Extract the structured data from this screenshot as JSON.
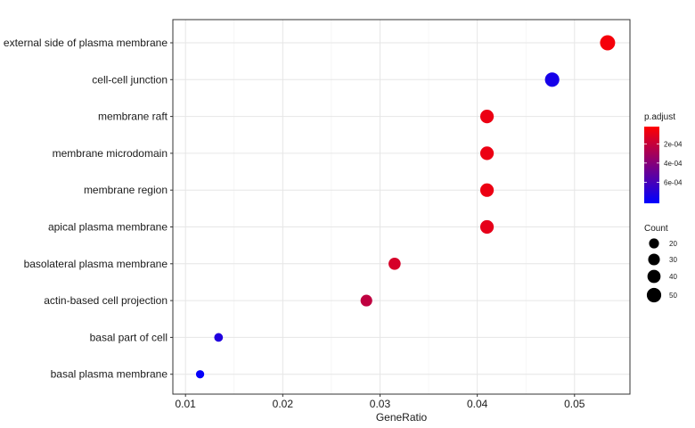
{
  "chart_data": {
    "type": "scatter",
    "xlabel": "GeneRatio",
    "ylabel": "",
    "xlim": [
      0.0087,
      0.0557
    ],
    "x_ticks": [
      0.01,
      0.02,
      0.03,
      0.04,
      0.05
    ],
    "x_tick_labels": [
      "0.01",
      "0.02",
      "0.03",
      "0.04",
      "0.05"
    ],
    "categories": [
      "external side of plasma membrane",
      "cell-cell junction",
      "membrane raft",
      "membrane microdomain",
      "membrane region",
      "apical plasma membrane",
      "basolateral plasma membrane",
      "actin-based cell projection",
      "basal part of cell",
      "basal plasma membrane"
    ],
    "points": [
      {
        "term": "external side of plasma membrane",
        "x": 0.0534,
        "count": 56,
        "p_adjust": 5e-05
      },
      {
        "term": "cell-cell junction",
        "x": 0.0477,
        "count": 50,
        "p_adjust": 0.00075
      },
      {
        "term": "membrane raft",
        "x": 0.041,
        "count": 43,
        "p_adjust": 8e-05
      },
      {
        "term": "membrane microdomain",
        "x": 0.041,
        "count": 43,
        "p_adjust": 8e-05
      },
      {
        "term": "membrane region",
        "x": 0.041,
        "count": 43,
        "p_adjust": 8e-05
      },
      {
        "term": "apical plasma membrane",
        "x": 0.041,
        "count": 43,
        "p_adjust": 0.0001
      },
      {
        "term": "basolateral plasma membrane",
        "x": 0.0315,
        "count": 33,
        "p_adjust": 0.00015
      },
      {
        "term": "actin-based cell projection",
        "x": 0.0286,
        "count": 30,
        "p_adjust": 0.00022
      },
      {
        "term": "basal part of cell",
        "x": 0.0134,
        "count": 14,
        "p_adjust": 0.00072
      },
      {
        "term": "basal plasma membrane",
        "x": 0.0115,
        "count": 12,
        "p_adjust": 0.0008
      }
    ],
    "color_legend": {
      "title": "p.adjust",
      "range": [
        2e-05,
        0.00082
      ],
      "low_color": "#ff0000",
      "high_color": "#0000ff",
      "ticks": [
        0.0002,
        0.0004,
        0.0006
      ],
      "tick_labels": [
        "2e-04",
        "4e-04",
        "6e-04"
      ]
    },
    "size_legend": {
      "title": "Count",
      "values": [
        20,
        30,
        40,
        50
      ],
      "labels": [
        "20",
        "30",
        "40",
        "50"
      ]
    },
    "grid": true,
    "legend_position": "right"
  }
}
